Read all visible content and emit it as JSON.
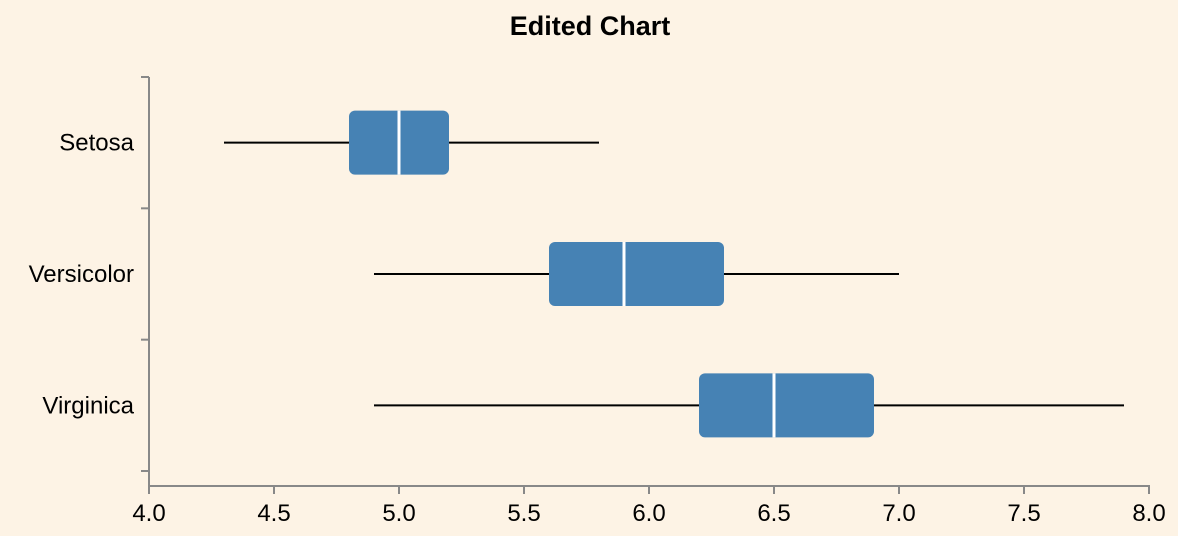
{
  "chart_data": {
    "type": "boxplot",
    "title": "Edited Chart",
    "orientation": "horizontal",
    "xlabel": "",
    "ylabel": "",
    "xlim": [
      4.0,
      8.0
    ],
    "x_ticks": [
      "4.0",
      "4.5",
      "5.0",
      "5.5",
      "6.0",
      "6.5",
      "7.0",
      "7.5",
      "8.0"
    ],
    "grid": false,
    "box_color": "#4682b4",
    "median_color": "#ffffff",
    "background": "#fdf3e5",
    "categories": [
      "Setosa",
      "Versicolor",
      "Virginica"
    ],
    "boxes": [
      {
        "category": "Setosa",
        "min": 4.3,
        "q1": 4.8,
        "median": 5.0,
        "q3": 5.2,
        "max": 5.8
      },
      {
        "category": "Versicolor",
        "min": 4.9,
        "q1": 5.6,
        "median": 5.9,
        "q3": 6.3,
        "max": 7.0
      },
      {
        "category": "Virginica",
        "min": 4.9,
        "q1": 6.2,
        "median": 6.5,
        "q3": 6.9,
        "max": 7.9
      }
    ]
  }
}
